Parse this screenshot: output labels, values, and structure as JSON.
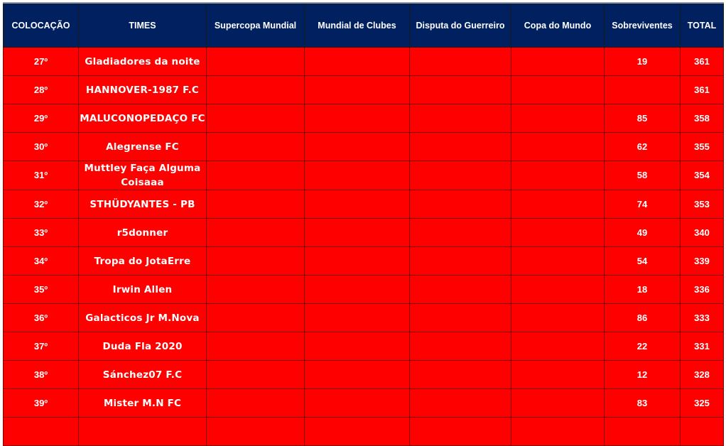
{
  "columns": [
    "COLOCAÇÃO",
    "TIMES",
    "Supercopa Mundial",
    "Mundial de Clubes",
    "Disputa do Guerreiro",
    "Copa do Mundo",
    "Sobreviventes",
    "TOTAL"
  ],
  "colors": {
    "header_bg": "#002060",
    "row_bg": "#ff0000",
    "text": "#ffffff"
  },
  "rows": [
    {
      "pos": "27º",
      "team": "Gladiadores da noite",
      "supercopa": "",
      "mundial": "",
      "guerreiro": "",
      "copa": "",
      "sobreviventes": "19",
      "total": "361"
    },
    {
      "pos": "28º",
      "team": "HANNOVER-1987 F.C",
      "supercopa": "",
      "mundial": "",
      "guerreiro": "",
      "copa": "",
      "sobreviventes": "",
      "total": "361"
    },
    {
      "pos": "29º",
      "team": "MALUCONOPEDAÇO FC",
      "supercopa": "",
      "mundial": "",
      "guerreiro": "",
      "copa": "",
      "sobreviventes": "85",
      "total": "358"
    },
    {
      "pos": "30º",
      "team": "Alegrense FC",
      "supercopa": "",
      "mundial": "",
      "guerreiro": "",
      "copa": "",
      "sobreviventes": "62",
      "total": "355"
    },
    {
      "pos": "31º",
      "team": "Muttley Faça Alguma Coisaaa",
      "supercopa": "",
      "mundial": "",
      "guerreiro": "",
      "copa": "",
      "sobreviventes": "58",
      "total": "354"
    },
    {
      "pos": "32º",
      "team": "STHÜDYANTES - PB",
      "supercopa": "",
      "mundial": "",
      "guerreiro": "",
      "copa": "",
      "sobreviventes": "74",
      "total": "353"
    },
    {
      "pos": "33º",
      "team": "r5donner",
      "supercopa": "",
      "mundial": "",
      "guerreiro": "",
      "copa": "",
      "sobreviventes": "49",
      "total": "340"
    },
    {
      "pos": "34º",
      "team": "Tropa do JotaErre",
      "supercopa": "",
      "mundial": "",
      "guerreiro": "",
      "copa": "",
      "sobreviventes": "54",
      "total": "339"
    },
    {
      "pos": "35º",
      "team": "Irwin Allen",
      "supercopa": "",
      "mundial": "",
      "guerreiro": "",
      "copa": "",
      "sobreviventes": "18",
      "total": "336"
    },
    {
      "pos": "36º",
      "team": "Galacticos Jr M.Nova",
      "supercopa": "",
      "mundial": "",
      "guerreiro": "",
      "copa": "",
      "sobreviventes": "86",
      "total": "333"
    },
    {
      "pos": "37º",
      "team": "Duda Fla 2020",
      "supercopa": "",
      "mundial": "",
      "guerreiro": "",
      "copa": "",
      "sobreviventes": "22",
      "total": "331"
    },
    {
      "pos": "38º",
      "team": "Sánchez07 F.C",
      "supercopa": "",
      "mundial": "",
      "guerreiro": "",
      "copa": "",
      "sobreviventes": "12",
      "total": "328"
    },
    {
      "pos": "39º",
      "team": "Mister M.N FC",
      "supercopa": "",
      "mundial": "",
      "guerreiro": "",
      "copa": "",
      "sobreviventes": "83",
      "total": "325"
    },
    {
      "pos": "",
      "team": "",
      "supercopa": "",
      "mundial": "",
      "guerreiro": "",
      "copa": "",
      "sobreviventes": "",
      "total": ""
    }
  ]
}
